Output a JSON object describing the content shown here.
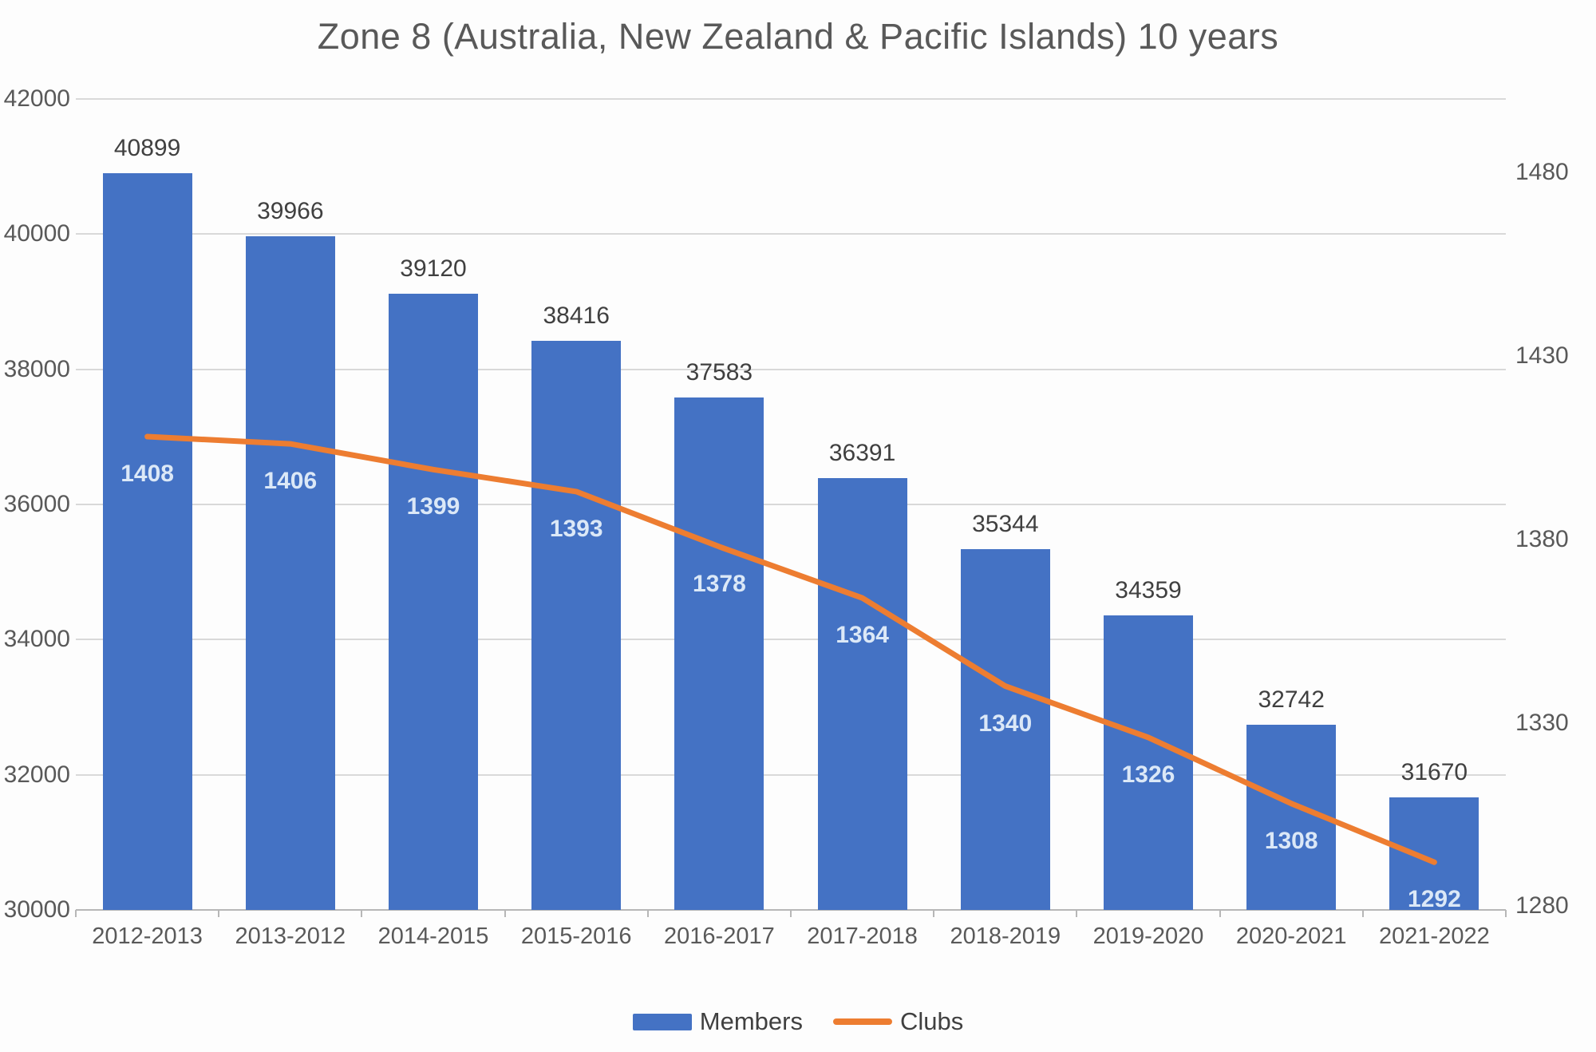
{
  "title": "Zone 8 (Australia, New Zealand & Pacific Islands) 10 years",
  "colors": {
    "bar_blue": "#4472c4",
    "line_orange": "#ed7d31",
    "bar_value_label": "#404040",
    "line_value_label": "#dbe8f7",
    "axis_text": "#595959",
    "gridline": "#d9d9d9",
    "axis_line": "#b7b7b7",
    "background": "#fdfdfd"
  },
  "chart_data": {
    "type": "bar",
    "subtype": "combo-bar-line-dual-axis",
    "title": "Zone 8 (Australia, New Zealand & Pacific Islands) 10 years",
    "categories": [
      "2012-2013",
      "2013-2012",
      "2014-2015",
      "2015-2016",
      "2016-2017",
      "2017-2018",
      "2018-2019",
      "2019-2020",
      "2020-2021",
      "2021-2022"
    ],
    "series": [
      {
        "name": "Members",
        "type": "bar",
        "axis": "left",
        "color": "#4472c4",
        "label_color": "#404040",
        "values": [
          40899,
          39966,
          39120,
          38416,
          37583,
          36391,
          35344,
          34359,
          32742,
          31670
        ]
      },
      {
        "name": "Clubs",
        "type": "line",
        "axis": "right",
        "color": "#ed7d31",
        "label_color": "#dbe8f7",
        "values": [
          1408,
          1406,
          1399,
          1393,
          1378,
          1364,
          1340,
          1326,
          1308,
          1292
        ]
      }
    ],
    "left_axis": {
      "min": 30000,
      "max": 42000,
      "tick_step": 2000,
      "ticks": [
        "42000",
        "40000",
        "38000",
        "36000",
        "34000",
        "32000",
        "30000"
      ],
      "tick_values": [
        42000,
        40000,
        38000,
        36000,
        34000,
        32000,
        30000
      ]
    },
    "right_axis": {
      "min": 1279,
      "max": 1500,
      "ticks": [
        "1480",
        "1430",
        "1380",
        "1330",
        "1280"
      ],
      "tick_values": [
        1480,
        1430,
        1380,
        1330,
        1280
      ]
    },
    "grid": true,
    "legend_position": "bottom",
    "legend": [
      "Members",
      "Clubs"
    ]
  }
}
